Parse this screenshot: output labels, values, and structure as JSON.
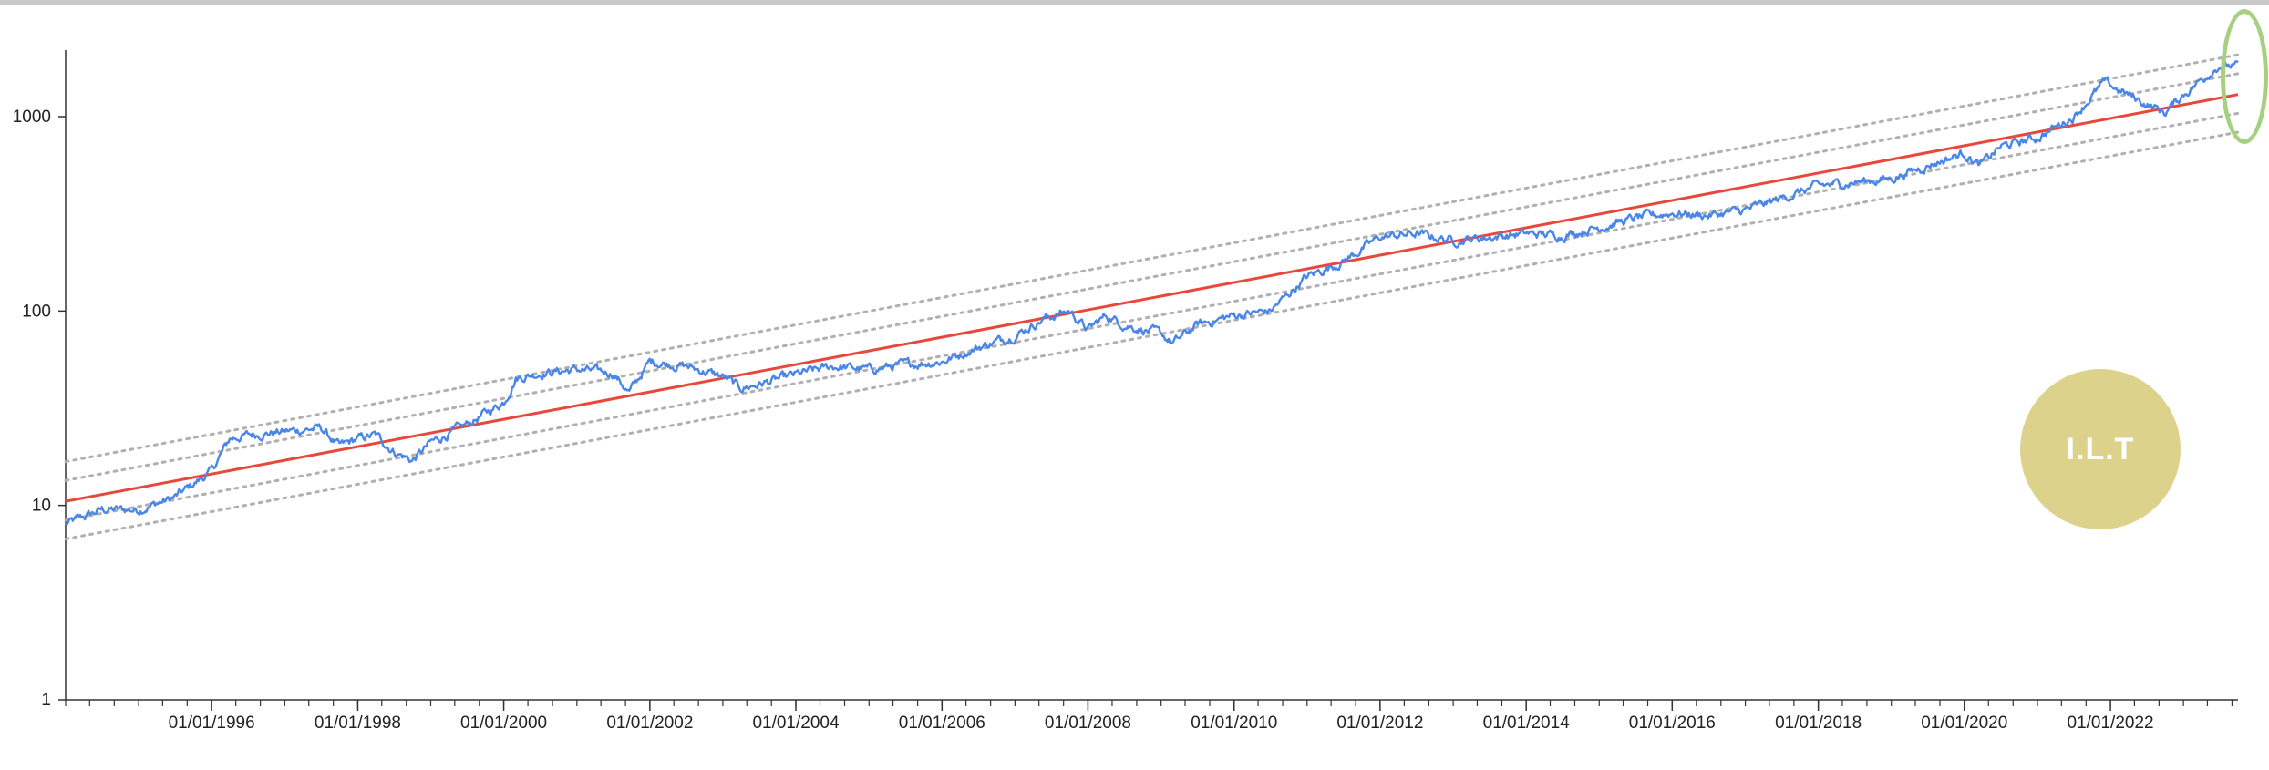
{
  "chart_data": {
    "type": "line",
    "title": "",
    "xlabel": "",
    "ylabel": "",
    "y_scale": "log",
    "ylim": [
      1,
      2200
    ],
    "xlim": [
      "1994-01-01",
      "2023-10-01"
    ],
    "y_ticks": [
      "1",
      "10",
      "100",
      "1000"
    ],
    "x_ticks": [
      "01/01/1996",
      "01/01/1998",
      "01/01/2000",
      "01/01/2002",
      "01/01/2004",
      "01/01/2006",
      "01/01/2008",
      "01/01/2010",
      "01/01/2012",
      "01/01/2014",
      "01/01/2016",
      "01/01/2018",
      "01/01/2020",
      "01/01/2022"
    ],
    "grid": false,
    "colors": {
      "price": "#4a86e8",
      "trend": "#e8483b",
      "bands": "#b0b0b0",
      "badge": "#dcd28c",
      "highlight": "#a6cf80"
    },
    "series": [
      {
        "role": "price",
        "x": [
          "1994-01-01",
          "1994-07-01",
          "1995-01-01",
          "1995-07-01",
          "1996-01-01",
          "1996-04-01",
          "1996-07-01",
          "1997-01-01",
          "1997-07-01",
          "1997-10-01",
          "1998-01-01",
          "1998-04-01",
          "1998-07-01",
          "1998-10-01",
          "1999-01-01",
          "1999-07-01",
          "2000-01-01",
          "2000-03-01",
          "2000-07-01",
          "2001-01-01",
          "2001-07-01",
          "2001-09-20",
          "2002-01-01",
          "2002-07-01",
          "2003-01-01",
          "2003-04-01",
          "2003-07-01",
          "2004-01-01",
          "2004-07-01",
          "2005-01-01",
          "2005-07-01",
          "2006-01-01",
          "2006-07-01",
          "2007-01-01",
          "2007-06-01",
          "2007-10-01",
          "2008-01-01",
          "2008-04-01",
          "2008-07-01",
          "2009-01-01",
          "2009-03-01",
          "2009-07-01",
          "2010-01-01",
          "2010-07-01",
          "2011-01-01",
          "2011-07-01",
          "2012-01-01",
          "2012-07-01",
          "2013-01-01",
          "2013-07-01",
          "2014-01-01",
          "2014-07-01",
          "2015-01-01",
          "2015-07-01",
          "2016-01-01",
          "2016-07-01",
          "2017-01-01",
          "2017-07-01",
          "2018-01-01",
          "2018-07-01",
          "2019-01-01",
          "2019-07-01",
          "2020-01-01",
          "2020-03-20",
          "2020-07-01",
          "2021-01-01",
          "2021-07-01",
          "2021-12-01",
          "2022-06-01",
          "2022-10-01",
          "2023-01-01",
          "2023-04-01",
          "2023-07-01",
          "2023-10-01"
        ],
        "values": [
          8,
          9.5,
          9.5,
          11,
          15,
          22,
          23,
          24,
          25,
          20,
          22,
          23,
          19,
          17,
          21,
          26,
          34,
          45,
          48,
          50,
          48,
          38,
          55,
          52,
          46,
          40,
          42,
          47,
          52,
          50,
          53,
          55,
          65,
          75,
          92,
          100,
          80,
          95,
          85,
          76,
          68,
          85,
          95,
          100,
          150,
          180,
          240,
          250,
          230,
          240,
          250,
          245,
          270,
          300,
          320,
          310,
          330,
          380,
          440,
          460,
          480,
          560,
          650,
          560,
          700,
          780,
          1000,
          1500,
          1200,
          1050,
          1300,
          1550,
          1850,
          1800
        ]
      },
      {
        "role": "trend",
        "x": [
          "1994-01-01",
          "2023-10-01"
        ],
        "values": [
          10.5,
          1300
        ]
      }
    ],
    "band_multipliers": [
      1.6,
      1.28,
      0.8,
      0.64
    ]
  },
  "badge": {
    "text": "I.L.T"
  }
}
